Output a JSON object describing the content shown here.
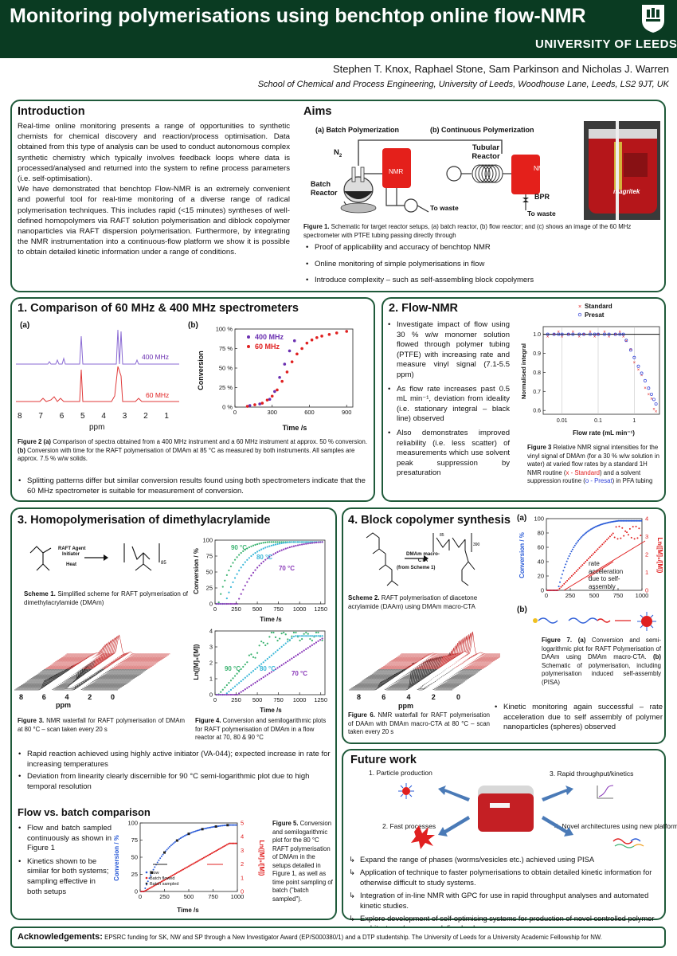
{
  "header": {
    "title": "Monitoring polymerisations using benchtop online flow-NMR",
    "university": "UNIVERSITY OF LEEDS",
    "authors": "Stephen T. Knox, Raphael Stone, Sam Parkinson and Nicholas J. Warren",
    "affiliation": "School of Chemical and Process Engineering, University of Leeds, Woodhouse Lane, Leeds, LS2 9JT, UK"
  },
  "intro": {
    "title": "Introduction",
    "p1": "Real-time online monitoring presents a range of opportunities to synthetic chemists for chemical discovery and reaction/process optimisation. Data obtained from this type of analysis can be used to conduct autonomous complex synthetic chemistry which typically involves feedback loops where data is processed/analysed and returned into the system to refine process parameters (i.e. self-optimisation).",
    "p2": "We have demonstrated that benchtop Flow-NMR is an extremely convenient and powerful tool for real-time monitoring of a diverse range of radical polymerisation techniques. This includes rapid (<15 minutes) syntheses of well-defined homopolymers via RAFT solution polymerisation and diblock copolymer nanoparticles via RAFT dispersion polymerisation. Furthermore, by integrating the NMR instrumentation into a continuous-flow platform we show it is possible to obtain detailed kinetic information under a range of conditions."
  },
  "aims": {
    "title": "Aims",
    "a_label": "(a) Batch Polymerization",
    "b_label": "(b) Continuous Polymerization",
    "n2": "N",
    "n2_sub": "2",
    "batch_reactor": "Batch Reactor",
    "nmr": "NMR",
    "to_waste": "To waste",
    "tubular_reactor": "Tubular Reactor",
    "bpr": "BPR",
    "magritek": "magritek",
    "fig1_lead": "Figure 1.",
    "fig1_text": " Schematic for target reactor setups, (a) batch reactor, (b) flow reactor; and (c) shows an image of the 60 MHz spectrometer with PTFE tubing passing directly through",
    "bullets": [
      "Proof of applicability and accuracy of benchtop NMR",
      "Online monitoring of simple polymerisations in flow",
      "Introduce complexity – such as self-assembling block copolymers"
    ]
  },
  "s1": {
    "title": "1. Comparison of 60 MHz & 400 MHz spectrometers",
    "a": "(a)",
    "b": "(b)",
    "label_400": "400 MHz",
    "label_60": "60 MHz",
    "ppm_ticks": [
      "8",
      "7",
      "6",
      "5",
      "4",
      "3",
      "2",
      "1"
    ],
    "ppm": "ppm",
    "fig2_lead": "Figure 2 (a)",
    "fig2_text": " Comparison of spectra obtained from a 400 MHz instrument and a 60 MHz instrument at approx. 50 % conversion. ",
    "fig2_b": "(b)",
    "fig2_text2": " Conversion with time for the RAFT polymerisation of DMAm at 85 °C as measured by both instruments. All samples are approx. 7.5 % w/w solids.",
    "bullet": "Splitting patterns differ but similar conversion results found using both spectrometers indicate that the 60 MHz spectrometer is suitable for measurement of conversion."
  },
  "s2": {
    "title": "2. Flow-NMR",
    "bullets": [
      "Investigate impact of flow using 30 % w/w monomer solution flowed through polymer tubing (PTFE) with increasing rate and measure vinyl signal (7.1-5.5 ppm)",
      "As flow rate increases past 0.5 mL min⁻¹, deviation from ideality (i.e. stationary integral – black line) observed",
      "Also demonstrates improved reliability (i.e. less scatter) of measurements which use solvent peak suppression by presaturation"
    ],
    "legend_standard": "Standard",
    "legend_presat": "Presat",
    "ylabel": "Normalised integral",
    "xlabel": "Flow rate (mL min⁻¹)",
    "y_ticks": [
      "1.0",
      "0.9",
      "0.8",
      "0.7",
      "0.6"
    ],
    "x_ticks": [
      "0.01",
      "0.1",
      "1"
    ],
    "fig3_lead": "Figure 3",
    "fig3_text": " Relative NMR signal intensities for the vinyl signal of DMAm (for a 30 % w/w solution in water) at varied flow rates by a standard 1H NMR routine (",
    "fig3_x": "x - Standard",
    "fig3_mid": ") and a solvent suppression routine (",
    "fig3_o": "o - Presat",
    "fig3_end": ") in PFA tubing"
  },
  "s3": {
    "title": "3. Homopolymerisation of dimethylacrylamide",
    "raft_agent": "RAFT Agent",
    "initiator": "Initiator",
    "heat": "Heat",
    "scheme1_lead": "Scheme 1.",
    "scheme1_text": " Simplified scheme for RAFT polymerisation of dimethylacrylamide (DMAm)",
    "t90": "90 °C",
    "t80": "80 °C",
    "t70": "70 °C",
    "conv_label": "Conversion / %",
    "ln_label": "Ln([M]₀/[M])",
    "time": "Time /s",
    "ppm": "ppm",
    "fig3_lead": "Figure 3.",
    "fig3_text": " NMR waterfall for RAFT polymerisation of DMAm at 80 °C – scan taken every 20 s",
    "fig4_lead": "Figure 4.",
    "fig4_text": " Conversion and semilogarithmic plots for RAFT polymerisation of DMAm in a flow reactor at 70, 80 & 90 °C",
    "bullets": [
      "Rapid reaction achieved using highly active initiator (VA-044); expected increase in rate for increasing temperatures",
      "Deviation from linearity clearly discernible for 90 °C semi-logarithmic plot due to high temporal resolution"
    ],
    "fvb_title": "Flow vs. batch comparison",
    "fvb_bullets": [
      "Flow and batch sampled continuously as shown in Figure 1",
      "Kinetics shown to be similar for both systems; sampling effective in both setups"
    ],
    "legend": [
      "Flow",
      "Batch flowed",
      "Batch sampled"
    ],
    "fig5_lead": "Figure 5.",
    "fig5_text": " Conversion and semilogarithmic plot for the 80 °C RAFT polymerisation of DMAm in the setups detailed in Figure 1, as well as time point sampling of batch (\"batch sampled\")."
  },
  "s4": {
    "title": "4. Block copolymer synthesis",
    "dmam_macro": "DMAm macro-CTA",
    "from_scheme": "(from Scheme 1)",
    "scheme2_lead": "Scheme 2.",
    "scheme2_text": " RAFT polymerisation of diacetone acrylamide (DAAm) using DMAm macro-CTA",
    "a": "(a)",
    "b": "(b)",
    "annot": "rate acceleration due to self-assembly",
    "conv_label": "Conversion / %",
    "ln_label": "Ln([M]₀/[M])",
    "time": "Time /s",
    "ppm": "ppm",
    "fig6_lead": "Figure 6.",
    "fig6_text": " NMR waterfall for RAFT polymerisation of DAAm with DMAm macro-CTA at 80 °C – scan taken every 20 s",
    "fig7_lead": "Figure 7. (a)",
    "fig7_text": " Conversion and semi-logarithmic plot for RAFT Polymerisation of DAAm using DMAm macro-CTA. ",
    "fig7_b": "(b)",
    "fig7_text2": " Schematic of polymerisation, including polymerisation induced self-assembly (PISA)",
    "bullet": "Kinetic monitoring again successful – rate acceleration due to self assembly of polymer nanoparticles (spheres) observed"
  },
  "future": {
    "title": "Future work",
    "items": [
      "1. Particle production",
      "2. Fast processes",
      "3. Rapid throughput/kinetics",
      "4. Novel architectures using new platform"
    ],
    "bullets": [
      "Expand the range of phases (worms/vesicles etc.) achieved using PISA",
      "Application of technique to faster polymerisations to obtain detailed kinetic information for otherwise difficult to study systems.",
      "Integration of in-line NMR with GPC for use in rapid throughput analyses and automated kinetic studies.",
      "Explore development of self-optimising systems for production of novel controlled polymer architectures/sequence defined polymers."
    ]
  },
  "ack": {
    "title": "Acknowledgements:",
    "text": " EPSRC funding for SK, NW and SP through a New Investigator Award (EP/S000380/1) and a DTP studentship. The University of Leeds for a University Academic Fellowship for NW."
  },
  "chart_data": [
    {
      "id": "fig2b",
      "type": "scatter",
      "xlabel": "Time /s",
      "ylabel": "Conversion",
      "xlim": [
        0,
        950
      ],
      "ylim": [
        0,
        100
      ],
      "x_ticks": [
        0,
        300,
        600,
        900
      ],
      "y_ticks": [
        "0 %",
        "25 %",
        "50 %",
        "75 %",
        "100 %"
      ],
      "series": [
        {
          "name": "400 MHz",
          "color": "#6a2fb0",
          "x": [
            120,
            200,
            280,
            320,
            360,
            400,
            440,
            480
          ],
          "y": [
            2,
            4,
            10,
            20,
            38,
            55,
            72,
            85
          ]
        },
        {
          "name": "60 MHz",
          "color": "#e02020",
          "x": [
            100,
            160,
            220,
            260,
            300,
            340,
            380,
            420,
            460,
            500,
            540,
            580,
            620,
            660,
            700,
            760,
            820,
            900
          ],
          "y": [
            1,
            3,
            5,
            9,
            14,
            22,
            33,
            45,
            58,
            68,
            75,
            82,
            86,
            89,
            91,
            93,
            95,
            97
          ]
        }
      ]
    },
    {
      "id": "fig4-conv",
      "type": "scatter",
      "ylabel": "Conversion / %",
      "xlabel": "Time /s",
      "xlim": [
        0,
        1300
      ],
      "ylim": [
        0,
        100
      ],
      "x_ticks": [
        0,
        250,
        500,
        750,
        1000,
        1250
      ],
      "y_ticks": [
        0,
        25,
        50,
        75,
        100
      ],
      "series": [
        {
          "name": "90 °C",
          "color": "#3cb371",
          "k": 0.006,
          "lag": 40
        },
        {
          "name": "80 °C",
          "color": "#3ab7d8",
          "k": 0.0045,
          "lag": 120
        },
        {
          "name": "70 °C",
          "color": "#8a3ab9",
          "k": 0.0035,
          "lag": 260
        }
      ]
    },
    {
      "id": "fig4-ln",
      "type": "scatter",
      "ylabel": "Ln([M]₀/[M])",
      "xlabel": "Time /s",
      "xlim": [
        0,
        1300
      ],
      "ylim": [
        0,
        4
      ],
      "x_ticks": [
        0,
        250,
        500,
        750,
        1000,
        1250
      ],
      "y_ticks": [
        0,
        1,
        2,
        3,
        4
      ],
      "series": [
        {
          "name": "90 °C",
          "color": "#3cb371"
        },
        {
          "name": "80 °C",
          "color": "#3ab7d8"
        },
        {
          "name": "70 °C",
          "color": "#8a3ab9"
        }
      ]
    },
    {
      "id": "fig5",
      "type": "scatter",
      "xlabel": "Time /s",
      "ylabel": "Conversion / %",
      "y2label": "Ln([M]₀/[M])",
      "xlim": [
        0,
        1000
      ],
      "ylim": [
        0,
        100
      ],
      "y2lim": [
        0,
        5
      ],
      "x_ticks": [
        0,
        250,
        500,
        750,
        1000
      ],
      "y_ticks": [
        0,
        25,
        50,
        75,
        100
      ],
      "y2_ticks": [
        0,
        1,
        2,
        3,
        4,
        5
      ],
      "series": [
        {
          "name": "Flow",
          "color": "#2a5bd7"
        },
        {
          "name": "Batch flowed",
          "color": "#e02020"
        },
        {
          "name": "Batch sampled",
          "color": "#222"
        }
      ]
    },
    {
      "id": "fig7a",
      "type": "scatter",
      "xlabel": "Time /s",
      "ylabel": "Conversion / %",
      "y2label": "Ln([M]₀/[M])",
      "xlim": [
        0,
        1000
      ],
      "ylim": [
        0,
        100
      ],
      "y2lim": [
        0,
        4
      ],
      "x_ticks": [
        0,
        250,
        500,
        750,
        1000
      ],
      "y_ticks": [
        0,
        20,
        40,
        60,
        80,
        100
      ],
      "y2_ticks": [
        0,
        1,
        2,
        3,
        4
      ],
      "series": [
        {
          "name": "Conversion",
          "color": "#2a5bd7"
        },
        {
          "name": "Ln",
          "color": "#e02020"
        }
      ]
    },
    {
      "id": "fig3flow",
      "type": "scatter",
      "xlabel": "Flow rate (mL min⁻¹)",
      "ylabel": "Normalised integral",
      "xlim": [
        0.003,
        5
      ],
      "ylim": [
        0.58,
        1.04
      ],
      "series": [
        {
          "name": "Standard",
          "color": "#e02020"
        },
        {
          "name": "Presat",
          "color": "#2a3bd7"
        }
      ]
    }
  ]
}
